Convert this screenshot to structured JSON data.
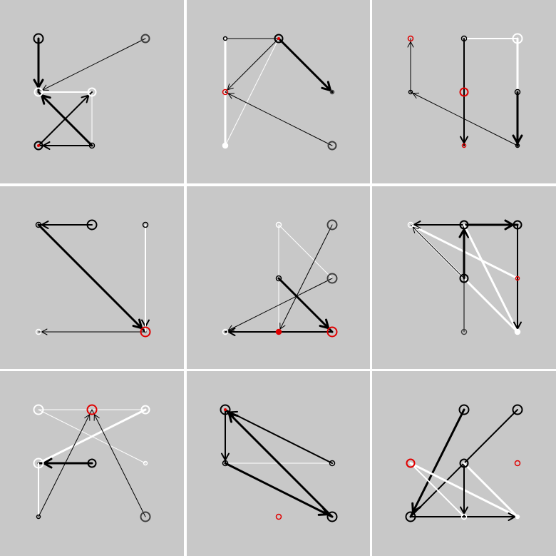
{
  "colors": {
    "background": "#ffffff",
    "panel": "#c8c8c8",
    "black": "#000000",
    "white": "#ffffff",
    "red": "#e00000",
    "gray": "#404040"
  },
  "panels": [
    {
      "nodes": [
        {
          "id": "p0n0",
          "c": "black",
          "r": "large"
        },
        {
          "id": "p0n1",
          "c": "gray",
          "r": "medium"
        },
        {
          "id": "p0n2",
          "c": "white",
          "r": "medium"
        },
        {
          "id": "p0n3",
          "c": "white",
          "r": "medium"
        },
        {
          "id": "p0n4",
          "c": "black",
          "r": "medium",
          "dot": "red"
        },
        {
          "id": "p0n5",
          "c": "black",
          "r": "small"
        }
      ],
      "edges": [
        {
          "from": 0,
          "to": 2,
          "c": "black",
          "w": "thick",
          "arrow": true
        },
        {
          "from": 1,
          "to": 2,
          "c": "black",
          "w": "thin",
          "arrow": true
        },
        {
          "from": 2,
          "to": 3,
          "c": "white",
          "w": "medium",
          "arrow": false
        },
        {
          "from": 3,
          "to": 5,
          "c": "white",
          "w": "thin",
          "arrow": false
        },
        {
          "from": 5,
          "to": 2,
          "c": "black",
          "w": "thick",
          "arrow": true
        },
        {
          "from": 4,
          "to": 3,
          "c": "black",
          "w": "medium",
          "arrow": true
        },
        {
          "from": 5,
          "to": 4,
          "c": "black",
          "w": "medium",
          "arrow": true
        }
      ]
    },
    {
      "nodes": [
        {
          "id": "p1n0",
          "c": "black",
          "r": "tiny"
        },
        {
          "id": "p1n1",
          "c": "black",
          "r": "medium",
          "dot": "red"
        },
        {
          "id": "p1n2",
          "c": "red",
          "r": "small"
        },
        {
          "id": "p1n3",
          "c": "gray",
          "r": "tiny"
        },
        {
          "id": "p1n4",
          "c": "white",
          "r": "small",
          "fill": true
        },
        {
          "id": "p1n5",
          "c": "gray",
          "r": "medium"
        }
      ],
      "edges": [
        {
          "from": 0,
          "to": 1,
          "c": "black",
          "w": "thin",
          "arrow": false
        },
        {
          "from": 0,
          "to": 4,
          "c": "white",
          "w": "thick",
          "arrow": false
        },
        {
          "from": 1,
          "to": 2,
          "c": "black",
          "w": "thin",
          "arrow": true
        },
        {
          "from": 1,
          "to": 3,
          "c": "black",
          "w": "thick",
          "arrow": true
        },
        {
          "from": 1,
          "to": 4,
          "c": "white",
          "w": "thin",
          "arrow": false
        },
        {
          "from": 5,
          "to": 2,
          "c": "black",
          "w": "thin",
          "arrow": true
        }
      ]
    },
    {
      "nodes": [
        {
          "id": "p2n0",
          "c": "red",
          "r": "small"
        },
        {
          "id": "p2n1",
          "c": "black",
          "r": "small"
        },
        {
          "id": "p2n2",
          "c": "white",
          "r": "large"
        },
        {
          "id": "p2n3",
          "c": "black",
          "r": "tiny"
        },
        {
          "id": "p2n4",
          "c": "red",
          "r": "medium"
        },
        {
          "id": "p2n5",
          "c": "black",
          "r": "small"
        },
        {
          "id": "p2n6",
          "c": "red",
          "r": "tiny"
        },
        {
          "id": "p2n7",
          "c": "black",
          "r": "tiny"
        }
      ],
      "edges": [
        {
          "from": 3,
          "to": 0,
          "c": "black",
          "w": "thin",
          "arrow": true
        },
        {
          "from": 1,
          "to": 2,
          "c": "white",
          "w": "medium",
          "arrow": false
        },
        {
          "from": 1,
          "to": 6,
          "c": "black",
          "w": "medium",
          "arrow": true
        },
        {
          "from": 2,
          "to": 5,
          "c": "white",
          "w": "thick",
          "arrow": false
        },
        {
          "from": 5,
          "to": 7,
          "c": "black",
          "w": "thick",
          "arrow": true
        },
        {
          "from": 7,
          "to": 3,
          "c": "black",
          "w": "thin",
          "arrow": true
        }
      ]
    },
    {
      "nodes": [
        {
          "id": "p3n0",
          "c": "black",
          "r": "small"
        },
        {
          "id": "p3n1",
          "c": "black",
          "r": "large"
        },
        {
          "id": "p3n2",
          "c": "black",
          "r": "small"
        },
        {
          "id": "p3n3",
          "c": "white",
          "r": "small"
        },
        {
          "id": "p3n4",
          "c": "red",
          "r": "large"
        }
      ],
      "edges": [
        {
          "from": 1,
          "to": 0,
          "c": "black",
          "w": "medium",
          "arrow": true
        },
        {
          "from": 0,
          "to": 4,
          "c": "black",
          "w": "thick",
          "arrow": true
        },
        {
          "from": 2,
          "to": 4,
          "c": "black",
          "w": "medium",
          "arrow": true
        },
        {
          "from": 2,
          "to": 4,
          "c": "white",
          "w": "medium",
          "arrow": false,
          "via": true
        },
        {
          "from": 4,
          "to": 3,
          "c": "black",
          "w": "thin",
          "arrow": true
        }
      ]
    },
    {
      "nodes": [
        {
          "id": "p4n0",
          "c": "white",
          "r": "small"
        },
        {
          "id": "p4n1",
          "c": "gray",
          "r": "large"
        },
        {
          "id": "p4n2",
          "c": "black",
          "r": "small"
        },
        {
          "id": "p4n3",
          "c": "gray",
          "r": "large"
        },
        {
          "id": "p4n4",
          "c": "white",
          "r": "small"
        },
        {
          "id": "p4n5",
          "c": "red",
          "r": "small",
          "fill": true
        },
        {
          "id": "p4n6",
          "c": "red",
          "r": "large"
        }
      ],
      "edges": [
        {
          "from": 0,
          "to": 5,
          "c": "white",
          "w": "thin",
          "arrow": false
        },
        {
          "from": 0,
          "to": 3,
          "c": "white",
          "w": "thin",
          "arrow": false
        },
        {
          "from": 1,
          "to": 5,
          "c": "black",
          "w": "thin",
          "arrow": true
        },
        {
          "from": 2,
          "to": 6,
          "c": "black",
          "w": "thick",
          "arrow": true
        },
        {
          "from": 3,
          "to": 4,
          "c": "black",
          "w": "thin",
          "arrow": true
        },
        {
          "from": 6,
          "to": 4,
          "c": "black",
          "w": "medium",
          "arrow": true
        }
      ]
    },
    {
      "nodes": [
        {
          "id": "p5n0",
          "c": "white",
          "r": "small"
        },
        {
          "id": "p5n1",
          "c": "black",
          "r": "medium"
        },
        {
          "id": "p5n2",
          "c": "black",
          "r": "medium"
        },
        {
          "id": "p5n3",
          "c": "black",
          "r": "medium"
        },
        {
          "id": "p5n4",
          "c": "red",
          "r": "tiny"
        },
        {
          "id": "p5n5",
          "c": "gray",
          "r": "small"
        },
        {
          "id": "p5n6",
          "c": "white",
          "r": "small",
          "fill": true
        }
      ],
      "edges": [
        {
          "from": 1,
          "to": 0,
          "c": "black",
          "w": "medium",
          "arrow": true
        },
        {
          "from": 1,
          "to": 2,
          "c": "black",
          "w": "thick",
          "arrow": true
        },
        {
          "from": 0,
          "to": 4,
          "c": "white",
          "w": "thick",
          "arrow": false
        },
        {
          "from": 0,
          "to": 6,
          "c": "white",
          "w": "thick",
          "arrow": false
        },
        {
          "from": 3,
          "to": 0,
          "c": "black",
          "w": "thin",
          "arrow": true
        },
        {
          "from": 3,
          "to": 1,
          "c": "black",
          "w": "thick",
          "arrow": true
        },
        {
          "from": 1,
          "to": 6,
          "c": "white",
          "w": "thick",
          "arrow": false
        },
        {
          "from": 2,
          "to": 6,
          "c": "black",
          "w": "medium",
          "arrow": true
        },
        {
          "from": 3,
          "to": 5,
          "c": "black",
          "w": "thin",
          "arrow": false
        }
      ]
    },
    {
      "nodes": [
        {
          "id": "p6n0",
          "c": "white",
          "r": "large"
        },
        {
          "id": "p6n1",
          "c": "red",
          "r": "large"
        },
        {
          "id": "p6n2",
          "c": "white",
          "r": "medium"
        },
        {
          "id": "p6n3",
          "c": "white",
          "r": "large"
        },
        {
          "id": "p6n4",
          "c": "black",
          "r": "medium"
        },
        {
          "id": "p6n5",
          "c": "white",
          "r": "tiny"
        },
        {
          "id": "p6n6",
          "c": "black",
          "r": "tiny"
        },
        {
          "id": "p6n7",
          "c": "gray",
          "r": "large"
        }
      ],
      "edges": [
        {
          "from": 0,
          "to": 2,
          "c": "white",
          "w": "thin",
          "arrow": false
        },
        {
          "from": 0,
          "to": 5,
          "c": "white",
          "w": "thin",
          "arrow": false
        },
        {
          "from": 2,
          "to": 3,
          "c": "white",
          "w": "thick",
          "arrow": false
        },
        {
          "from": 2,
          "to": 3,
          "c": "white",
          "w": "thin",
          "arrow": false,
          "via": true
        },
        {
          "from": 4,
          "to": 3,
          "c": "black",
          "w": "thick",
          "arrow": true
        },
        {
          "from": 3,
          "to": 6,
          "c": "white",
          "w": "medium",
          "arrow": false
        },
        {
          "from": 6,
          "to": 1,
          "c": "black",
          "w": "thin",
          "arrow": true
        },
        {
          "from": 7,
          "to": 1,
          "c": "black",
          "w": "thin",
          "arrow": true
        }
      ]
    },
    {
      "nodes": [
        {
          "id": "p7n0",
          "c": "black",
          "r": "large",
          "dot": "red"
        },
        {
          "id": "p7n1",
          "c": "black",
          "r": "small"
        },
        {
          "id": "p7n2",
          "c": "black",
          "r": "small"
        },
        {
          "id": "p7n3",
          "c": "red",
          "r": "small"
        },
        {
          "id": "p7n4",
          "c": "black",
          "r": "large"
        }
      ],
      "edges": [
        {
          "from": 0,
          "to": 1,
          "c": "black",
          "w": "medium",
          "arrow": true
        },
        {
          "from": 1,
          "to": 2,
          "c": "white",
          "w": "thin",
          "arrow": false
        },
        {
          "from": 2,
          "to": 0,
          "c": "black",
          "w": "medium",
          "arrow": true
        },
        {
          "from": 1,
          "to": 4,
          "c": "black",
          "w": "thick",
          "arrow": true
        },
        {
          "from": 4,
          "to": 0,
          "c": "black",
          "w": "thick",
          "arrow": true
        }
      ]
    },
    {
      "nodes": [
        {
          "id": "p8n0",
          "c": "black",
          "r": "large"
        },
        {
          "id": "p8n1",
          "c": "black",
          "r": "large"
        },
        {
          "id": "p8n2",
          "c": "red",
          "r": "medium"
        },
        {
          "id": "p8n3",
          "c": "black",
          "r": "medium"
        },
        {
          "id": "p8n4",
          "c": "red",
          "r": "small"
        },
        {
          "id": "p8n5",
          "c": "black",
          "r": "large"
        },
        {
          "id": "p8n6",
          "c": "white",
          "r": "small"
        },
        {
          "id": "p8n7",
          "c": "white",
          "r": "tiny",
          "fill": true
        }
      ],
      "edges": [
        {
          "from": 0,
          "to": 5,
          "c": "black",
          "w": "thick",
          "arrow": true
        },
        {
          "from": 1,
          "to": 5,
          "c": "black",
          "w": "medium",
          "arrow": false
        },
        {
          "from": 2,
          "to": 6,
          "c": "white",
          "w": "medium",
          "arrow": false
        },
        {
          "from": 2,
          "to": 7,
          "c": "white",
          "w": "thick",
          "arrow": false
        },
        {
          "from": 3,
          "to": 6,
          "c": "black",
          "w": "medium",
          "arrow": true
        },
        {
          "from": 3,
          "to": 7,
          "c": "white",
          "w": "thick",
          "arrow": false
        },
        {
          "from": 5,
          "to": 7,
          "c": "black",
          "w": "medium",
          "arrow": true
        }
      ]
    }
  ]
}
